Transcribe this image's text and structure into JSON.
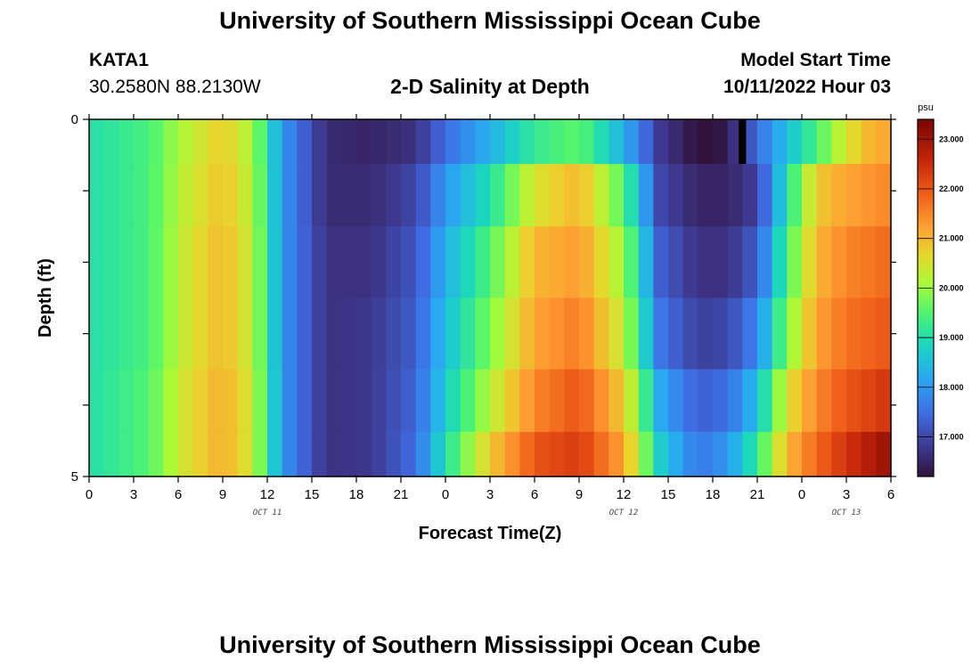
{
  "titles": {
    "main": "University of Southern Mississippi Ocean Cube",
    "repeat": "University of Southern Mississippi Ocean Cube",
    "subtitle": "2-D Salinity at Depth"
  },
  "station": {
    "id": "KATA1",
    "coords": "30.2580N  88.2130W"
  },
  "model_start": {
    "label": "Model Start Time",
    "value": "10/11/2022 Hour 03"
  },
  "chart_data": {
    "type": "heatmap",
    "title": "2-D Salinity at Depth",
    "xlabel": "Forecast Time(Z)",
    "ylabel": "Depth (ft)",
    "x_tick_labels": [
      "0",
      "3",
      "6",
      "9",
      "12",
      "15",
      "18",
      "21",
      "0",
      "3",
      "6",
      "9",
      "12",
      "15",
      "18",
      "21",
      "0",
      "3",
      "6"
    ],
    "date_labels": [
      {
        "label": "OCT 11",
        "at_tick": 4
      },
      {
        "label": "OCT 12",
        "at_tick": 12
      },
      {
        "label": "OCT 13",
        "at_tick": 17
      }
    ],
    "x_hours_range": [
      0,
      54
    ],
    "y_range_ft": [
      0,
      5
    ],
    "y_tick_labels": [
      "0",
      "5"
    ],
    "colorbar": {
      "unit": "psu",
      "range": [
        16.2,
        23.4
      ],
      "ticks": [
        "17.000",
        "18.000",
        "19.000",
        "20.000",
        "21.000",
        "22.000",
        "23.000"
      ],
      "tick_values": [
        17,
        18,
        19,
        20,
        21,
        22,
        23
      ]
    },
    "depth_rows": [
      {
        "depth_ft": 0.25,
        "time_hours": [
          0,
          4,
          6.5,
          9,
          11,
          13,
          16,
          19,
          22,
          24,
          27,
          30,
          33,
          36,
          38.5,
          41,
          42,
          43,
          45,
          47,
          49,
          51,
          52.5,
          54
        ],
        "values": [
          19.0,
          19.4,
          20.2,
          20.8,
          20.1,
          18.0,
          16.6,
          16.5,
          16.7,
          17.5,
          18.3,
          19.2,
          19.6,
          18.3,
          16.8,
          16.2,
          16.2,
          16.4,
          17.5,
          18.5,
          19.4,
          20.5,
          21.0,
          21.2
        ]
      },
      {
        "depth_ft": 1.0,
        "time_hours": [
          0,
          4,
          6.5,
          9,
          11,
          13,
          16,
          19,
          22,
          24,
          27,
          30,
          33,
          36,
          38.5,
          41,
          43,
          45,
          47,
          49,
          51,
          54
        ],
        "values": [
          19.0,
          19.4,
          20.3,
          20.9,
          20.2,
          18.0,
          16.6,
          16.6,
          17.0,
          18.0,
          19.0,
          20.5,
          21.0,
          19.5,
          17.0,
          16.5,
          16.5,
          16.9,
          19.0,
          20.8,
          21.2,
          21.5
        ]
      },
      {
        "depth_ft": 2.0,
        "time_hours": [
          0,
          4,
          6.5,
          9,
          11,
          13,
          16,
          19,
          22,
          24,
          27,
          30,
          33,
          36,
          38.5,
          41,
          43,
          45,
          47,
          49,
          51,
          54
        ],
        "values": [
          19.0,
          19.4,
          20.4,
          21.0,
          20.3,
          18.0,
          16.7,
          16.7,
          17.2,
          18.3,
          19.5,
          21.0,
          21.3,
          20.0,
          17.3,
          16.7,
          16.7,
          17.3,
          19.4,
          21.0,
          21.5,
          21.8
        ]
      },
      {
        "depth_ft": 3.0,
        "time_hours": [
          0,
          4,
          6.5,
          9,
          11,
          13,
          16,
          19,
          22,
          24,
          27,
          30,
          33,
          36,
          38.5,
          41,
          43,
          45,
          47,
          49,
          51,
          54
        ],
        "values": [
          19.0,
          19.4,
          20.4,
          21.0,
          20.3,
          18.0,
          16.7,
          16.8,
          17.3,
          18.5,
          19.8,
          21.2,
          21.6,
          20.3,
          17.6,
          16.9,
          17.0,
          17.8,
          19.8,
          21.2,
          21.7,
          22.0
        ]
      },
      {
        "depth_ft": 4.0,
        "time_hours": [
          0,
          4,
          6.5,
          9,
          11,
          13,
          16,
          19,
          22,
          24,
          27,
          30,
          33,
          36,
          38.5,
          41,
          43,
          45,
          47,
          49,
          51,
          54
        ],
        "values": [
          19.0,
          19.5,
          20.5,
          21.1,
          20.4,
          18.0,
          16.7,
          16.8,
          17.4,
          18.7,
          20.2,
          21.5,
          22.0,
          20.8,
          18.2,
          17.3,
          17.5,
          18.5,
          20.5,
          21.5,
          22.0,
          22.4
        ]
      },
      {
        "depth_ft": 4.75,
        "time_hours": [
          0,
          4,
          6.5,
          9,
          11,
          13,
          16,
          19,
          22,
          24,
          27,
          30,
          33,
          36,
          38.5,
          41,
          43,
          45,
          47,
          49,
          51,
          54
        ],
        "values": [
          19.0,
          19.5,
          20.5,
          21.1,
          20.4,
          18.0,
          16.7,
          16.8,
          17.5,
          19.0,
          20.8,
          22.0,
          22.3,
          21.2,
          18.7,
          17.6,
          18.0,
          19.2,
          21.0,
          21.8,
          22.4,
          23.1
        ]
      }
    ],
    "missing_cells": [
      {
        "time_hours": 44,
        "depth_ft": 0.25
      }
    ]
  }
}
